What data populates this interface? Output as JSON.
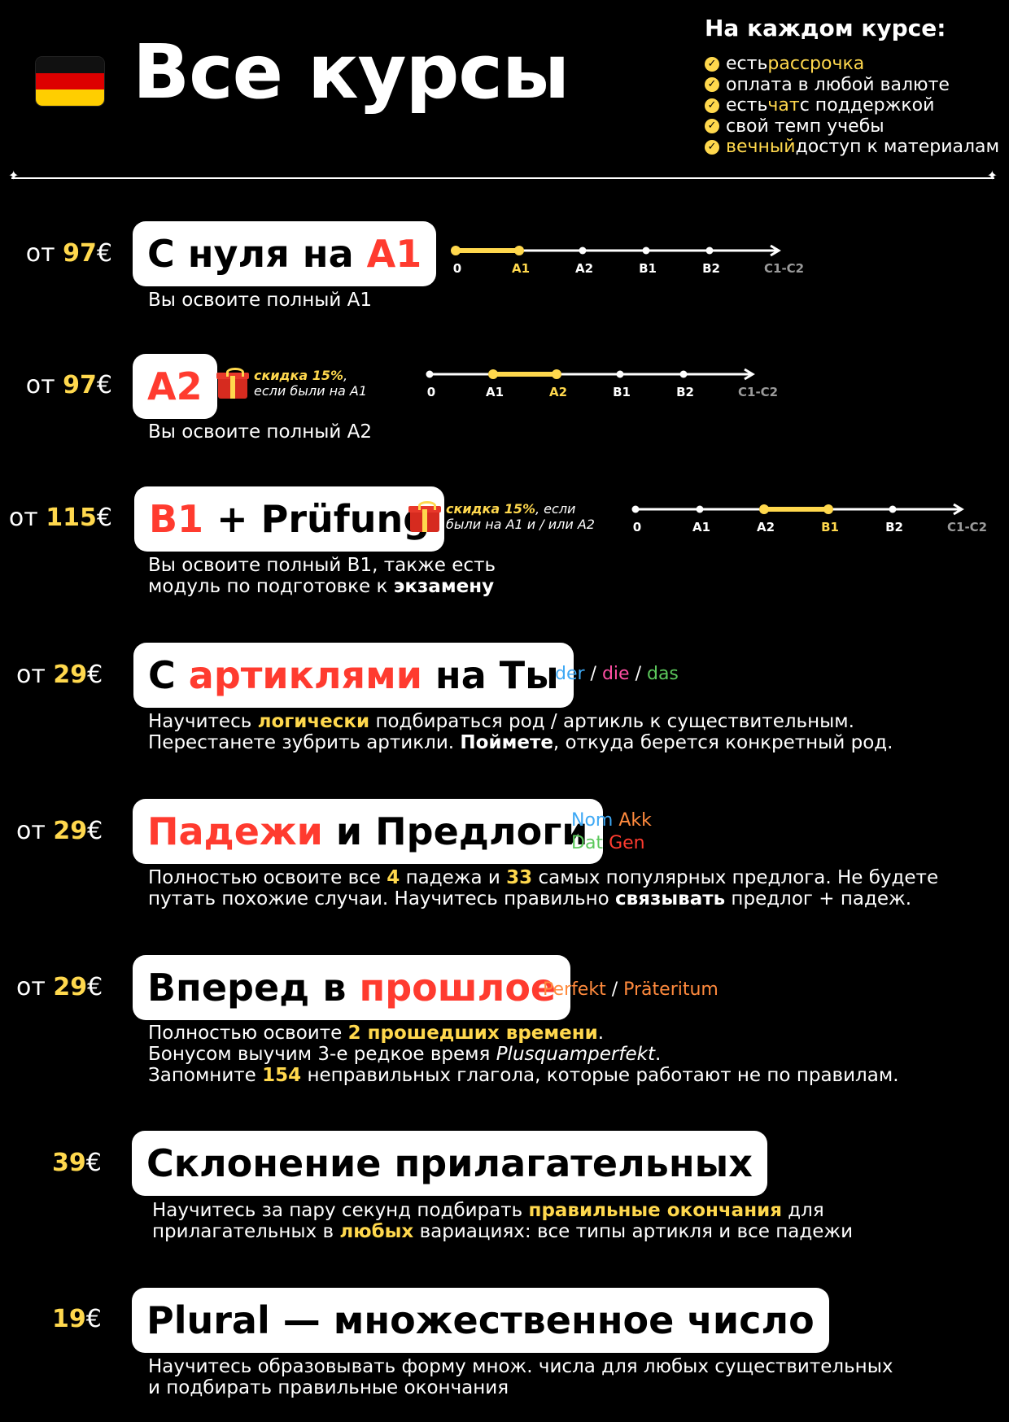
{
  "header": {
    "title": "Все курсы",
    "perks_title": "На каждом курсе:",
    "perks": [
      {
        "pre": "есть ",
        "hl": "рассрочка",
        "post": ""
      },
      {
        "pre": "оплата в любой валюте",
        "hl": "",
        "post": ""
      },
      {
        "pre": "есть ",
        "hl": "чат",
        "post": " с поддержкой"
      },
      {
        "pre": "свой темп учебы",
        "hl": "",
        "post": ""
      },
      {
        "pre": "",
        "hl": "вечный",
        "post": " доступ к материалам"
      }
    ]
  },
  "timeline_labels": [
    "0",
    "A1",
    "A2",
    "B1",
    "B2",
    "C1-C2"
  ],
  "courses": [
    {
      "price_prefix": "от ",
      "price": "97",
      "currency": "€",
      "title_parts": [
        {
          "t": "С нуля на ",
          "c": "black"
        },
        {
          "t": "A1",
          "c": "red"
        }
      ],
      "desc_lines": [
        [
          {
            "t": "Вы освоите полный A1"
          }
        ]
      ],
      "timeline_active": [
        0,
        1
      ]
    },
    {
      "price_prefix": "от ",
      "price": "97",
      "currency": "€",
      "title_parts": [
        {
          "t": "A2",
          "c": "red"
        }
      ],
      "gift": {
        "bold": "скидка 15%",
        "rest1": ",",
        "rest2": "если были на A1"
      },
      "desc_lines": [
        [
          {
            "t": "Вы освоите полный A2"
          }
        ]
      ],
      "timeline_active": [
        1,
        2
      ]
    },
    {
      "price_prefix": "от ",
      "price": "115",
      "currency": "€",
      "title_parts": [
        {
          "t": "B1",
          "c": "red"
        },
        {
          "t": " + Prüfung",
          "c": "black"
        }
      ],
      "gift": {
        "bold": "скидка 15%",
        "rest1": ", если",
        "rest2": "были на A1 и / или A2"
      },
      "desc_lines": [
        [
          {
            "t": "Вы освоите полный B1, также есть"
          }
        ],
        [
          {
            "t": "модуль по подготовке к "
          },
          {
            "t": "экзамену",
            "b": true
          }
        ]
      ],
      "timeline_active": [
        2,
        3
      ]
    },
    {
      "price_prefix": "от ",
      "price": "29",
      "currency": "€",
      "title_parts": [
        {
          "t": "С ",
          "c": "black"
        },
        {
          "t": "артиклями",
          "c": "red"
        },
        {
          "t": " на Ты",
          "c": "black"
        }
      ],
      "tags": [
        {
          "t": "der",
          "c": "#3fa9f5"
        },
        {
          "t": " / ",
          "c": "#ffffff"
        },
        {
          "t": "die",
          "c": "#ff4fa3"
        },
        {
          "t": " / ",
          "c": "#ffffff"
        },
        {
          "t": "das",
          "c": "#5cc85c"
        }
      ],
      "desc_lines": [
        [
          {
            "t": "Научитесь "
          },
          {
            "t": "логически",
            "y": true
          },
          {
            "t": " подбираться род / артикль к существительным."
          }
        ],
        [
          {
            "t": "Перестанете зубрить артикли. "
          },
          {
            "t": "Поймете",
            "b": true
          },
          {
            "t": ", откуда берется конкретный род."
          }
        ]
      ]
    },
    {
      "price_prefix": "от ",
      "price": "29",
      "currency": "€",
      "title_parts": [
        {
          "t": "Падежи",
          "c": "red"
        },
        {
          "t": " и Предлоги",
          "c": "black"
        }
      ],
      "cases": [
        {
          "t": "Nom",
          "c": "#3fa9f5"
        },
        {
          "t": "Akk",
          "c": "#ff8a3d"
        },
        {
          "t": "Dat",
          "c": "#5cc85c"
        },
        {
          "t": "Gen",
          "c": "#ff3b2f"
        }
      ],
      "desc_lines": [
        [
          {
            "t": "Полностью освоите все "
          },
          {
            "t": "4",
            "y": true
          },
          {
            "t": " падежа и "
          },
          {
            "t": "33",
            "y": true
          },
          {
            "t": " самых популярных предлога. Не будете"
          }
        ],
        [
          {
            "t": "путать похожие случаи. Научитесь правильно "
          },
          {
            "t": "связывать",
            "b": true
          },
          {
            "t": " предлог + падеж."
          }
        ]
      ]
    },
    {
      "price_prefix": "от ",
      "price": "29",
      "currency": "€",
      "title_parts": [
        {
          "t": "Вперед в ",
          "c": "black"
        },
        {
          "t": "прошлое",
          "c": "red"
        }
      ],
      "tags": [
        {
          "t": "Perfekt",
          "c": "#ff8a3d"
        },
        {
          "t": " / ",
          "c": "#ffffff"
        },
        {
          "t": "Präteritum",
          "c": "#ff8a3d"
        }
      ],
      "desc_lines": [
        [
          {
            "t": "Полностью освоите "
          },
          {
            "t": "2 прошедших времени",
            "y": true
          },
          {
            "t": "."
          }
        ],
        [
          {
            "t": "Бонусом выучим 3-е редкое время "
          },
          {
            "t": "Plusquamperfekt",
            "i": true
          },
          {
            "t": "."
          }
        ],
        [
          {
            "t": "Запомните "
          },
          {
            "t": "154",
            "y": true
          },
          {
            "t": " неправильных глагола, которые работают не по правилам."
          }
        ]
      ]
    },
    {
      "price_prefix": "",
      "price": "39",
      "currency": "€",
      "title_parts": [
        {
          "t": "Склонение прилагательных",
          "c": "black"
        }
      ],
      "desc_lines": [
        [
          {
            "t": "Научитесь за пару секунд подбирать "
          },
          {
            "t": "правильные окончания",
            "y": true
          },
          {
            "t": " для"
          }
        ],
        [
          {
            "t": "прилагательных в "
          },
          {
            "t": "любых",
            "y": true
          },
          {
            "t": " вариациях: все типы артикля и все падежи"
          }
        ]
      ]
    },
    {
      "price_prefix": "",
      "price": "19",
      "currency": "€",
      "title_parts": [
        {
          "t": "Plural — множественное число",
          "c": "black"
        }
      ],
      "desc_lines": [
        [
          {
            "t": "Научитесь образовывать форму множ. числа для любых существительных"
          }
        ],
        [
          {
            "t": "и подбирать правильные окончания"
          }
        ]
      ]
    }
  ],
  "colors": {
    "accent_yellow": "#ffd84d",
    "accent_red": "#ff3b2f",
    "background": "#000000",
    "card": "#ffffff"
  }
}
